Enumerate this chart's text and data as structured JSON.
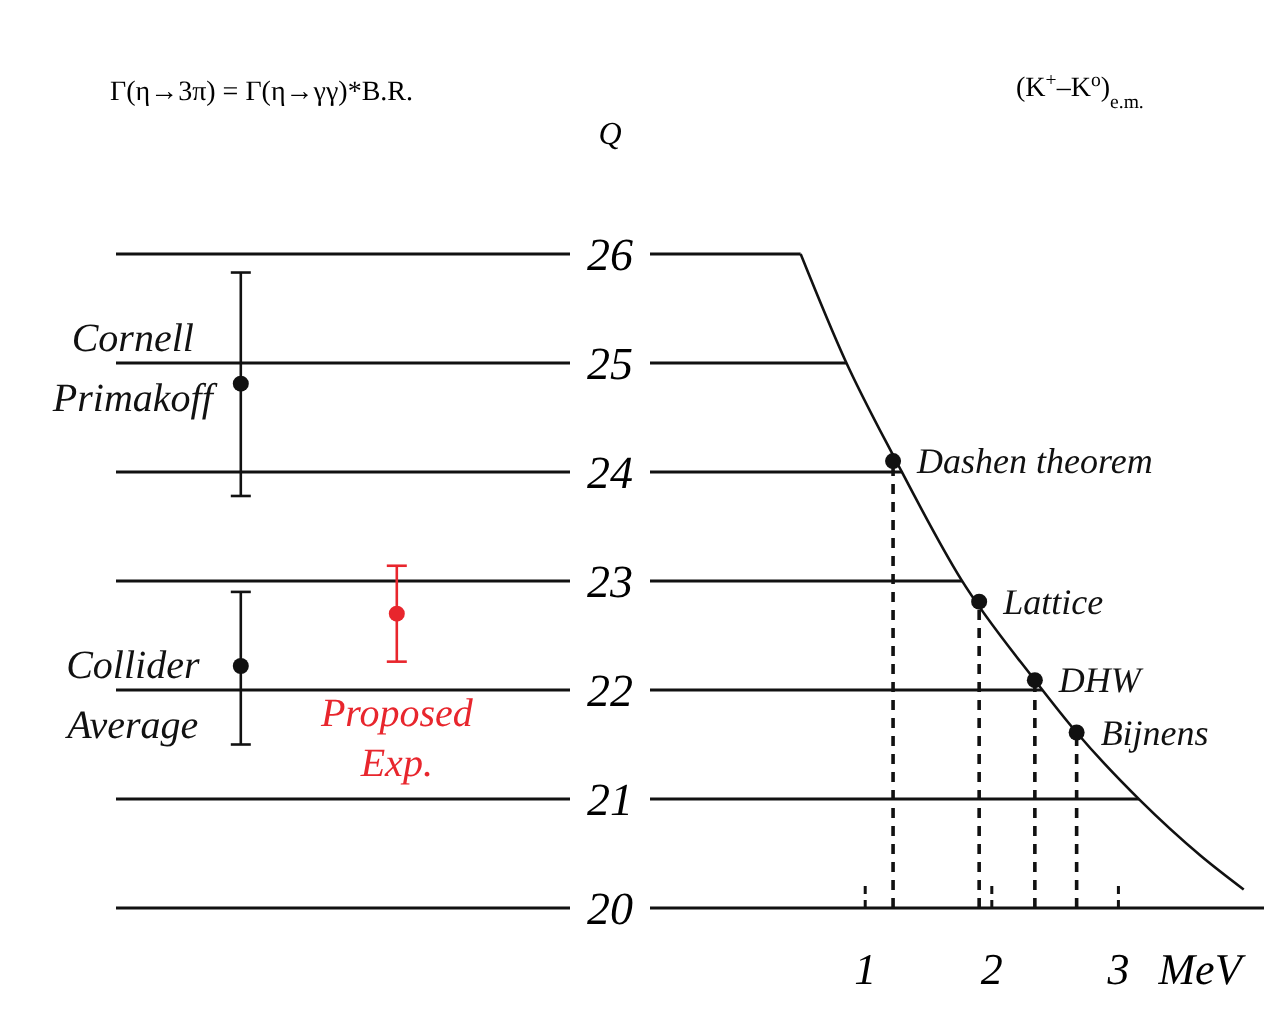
{
  "chart_data": [
    {
      "type": "scatter",
      "title": "Γ(η→3π) = Γ(η→γγ)*B.R.",
      "ylabel": "Q",
      "categories": [
        null,
        null
      ],
      "ylim": [
        20,
        26
      ],
      "yticks": [
        20,
        21,
        22,
        23,
        24,
        25,
        26
      ],
      "grid": "y",
      "marker": "circle",
      "series": [
        {
          "name": "Cornell Primakoff",
          "color": "#111111",
          "values": [
            24.81,
            null
          ],
          "errors": [
            [
              23.78,
              25.83
            ],
            null
          ]
        },
        {
          "name": "Collider Average",
          "color": "#111111",
          "values": [
            22.22,
            null
          ],
          "errors": [
            [
              21.5,
              22.9
            ],
            null
          ]
        },
        {
          "name": "Proposed Exp.",
          "color": "#e8262d",
          "values": [
            null,
            22.7
          ],
          "errors": [
            null,
            [
              22.26,
              23.14
            ]
          ]
        }
      ]
    },
    {
      "type": "line",
      "title": "(K$^{+}$–K$^{o}$)$_{e.m.}$",
      "xlabel": "MeV",
      "xlim": [
        -0.7,
        4.15
      ],
      "xticks": [
        1,
        2,
        3
      ],
      "ylim": [
        20,
        26
      ],
      "yticks": [
        20,
        21,
        22,
        23,
        24,
        25,
        26
      ],
      "tick_labels": "x",
      "grid": "y",
      "series": [
        {
          "color": "#111111",
          "marker": "none",
          "x": [
            0.49,
            0.84,
            1.24,
            1.76,
            2.34,
            2.67,
            3.17,
            3.65,
            3.99
          ],
          "values": [
            26.0,
            25.03,
            24.11,
            23.01,
            22.09,
            21.61,
            20.99,
            20.48,
            20.17
          ]
        },
        {
          "type": "lollipop",
          "name": "Dashen theorem",
          "color": "#111111",
          "marker": "circle",
          "line_style": "dashed",
          "x": [
            1.22
          ],
          "values": [
            24.1
          ]
        },
        {
          "type": "lollipop",
          "name": "Lattice",
          "color": "#111111",
          "marker": "circle",
          "line_style": "dashed",
          "x": [
            1.9
          ],
          "values": [
            22.81
          ]
        },
        {
          "type": "lollipop",
          "name": "DHW",
          "color": "#111111",
          "marker": "circle",
          "line_style": "dashed",
          "x": [
            2.34
          ],
          "values": [
            22.09
          ]
        },
        {
          "type": "lollipop",
          "name": "Bijnens",
          "color": "#111111",
          "marker": "circle",
          "line_style": "dashed",
          "x": [
            2.67
          ],
          "values": [
            21.61
          ]
        }
      ]
    }
  ]
}
